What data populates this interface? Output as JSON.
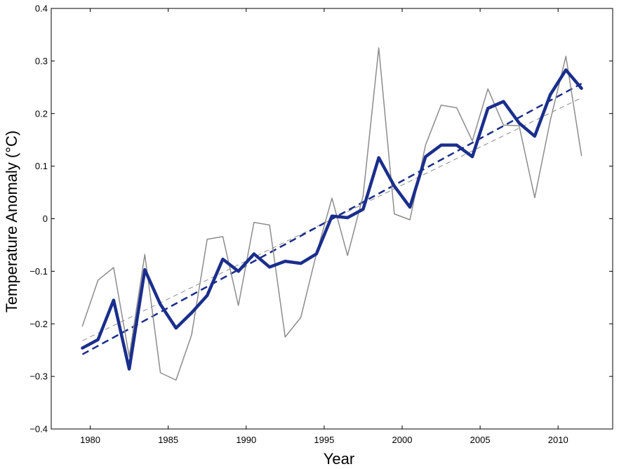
{
  "chart_data": {
    "type": "line",
    "title": "",
    "xlabel": "Year",
    "ylabel": "Temperature Anomaly (°C)",
    "xlim": [
      1977.5,
      2013.5
    ],
    "ylim": [
      -0.4,
      0.4
    ],
    "x_ticks": [
      1980,
      1985,
      1990,
      1995,
      2000,
      2005,
      2010
    ],
    "y_ticks": [
      -0.4,
      -0.3,
      -0.2,
      -0.1,
      0,
      0.1,
      0.2,
      0.3,
      0.4
    ],
    "x_tick_labels": [
      "1980",
      "1985",
      "1990",
      "1995",
      "2000",
      "2005",
      "2010"
    ],
    "y_tick_labels": [
      "−0.4",
      "−0.3",
      "−0.2",
      "−0.1",
      "0",
      "0.1",
      "0.2",
      "0.3",
      "0.4"
    ],
    "grid": false,
    "legend": "none",
    "x": [
      1979.5,
      1980.5,
      1981.5,
      1982.5,
      1983.5,
      1984.5,
      1985.5,
      1986.5,
      1987.5,
      1988.5,
      1989.5,
      1990.5,
      1991.5,
      1992.5,
      1993.5,
      1994.5,
      1995.5,
      1996.5,
      1997.5,
      1998.5,
      1999.5,
      2000.5,
      2001.5,
      2002.5,
      2003.5,
      2004.5,
      2005.5,
      2006.5,
      2007.5,
      2008.5,
      2009.5,
      2010.5,
      2011.5
    ],
    "series": [
      {
        "style": "thin-gray",
        "color": "#8c8c8c",
        "values": [
          -0.204,
          -0.117,
          -0.093,
          -0.262,
          -0.068,
          -0.293,
          -0.307,
          -0.221,
          -0.039,
          -0.034,
          -0.165,
          -0.007,
          -0.012,
          -0.225,
          -0.188,
          -0.067,
          0.039,
          -0.07,
          0.044,
          0.325,
          0.009,
          -0.002,
          0.14,
          0.216,
          0.211,
          0.148,
          0.247,
          0.178,
          0.177,
          0.04,
          0.187,
          0.309,
          0.12
        ]
      },
      {
        "style": "thick-blue",
        "color": "#1a2e8c",
        "values": [
          -0.246,
          -0.23,
          -0.155,
          -0.286,
          -0.097,
          -0.163,
          -0.208,
          -0.179,
          -0.146,
          -0.077,
          -0.1,
          -0.067,
          -0.092,
          -0.081,
          -0.085,
          -0.067,
          0.005,
          0.002,
          0.018,
          0.116,
          0.062,
          0.022,
          0.118,
          0.14,
          0.14,
          0.118,
          0.21,
          0.223,
          0.182,
          0.157,
          0.236,
          0.283,
          0.248
        ]
      }
    ],
    "trend_lines": [
      {
        "style": "thin-gray-dashed",
        "color": "#8c8c8c",
        "x": [
          1979.5,
          2011.5
        ],
        "y": [
          -0.232,
          0.23
        ]
      },
      {
        "style": "thick-blue-dashed",
        "color": "#1a2e8c",
        "x": [
          1979.5,
          2011.5
        ],
        "y": [
          -0.258,
          0.257
        ]
      }
    ]
  }
}
